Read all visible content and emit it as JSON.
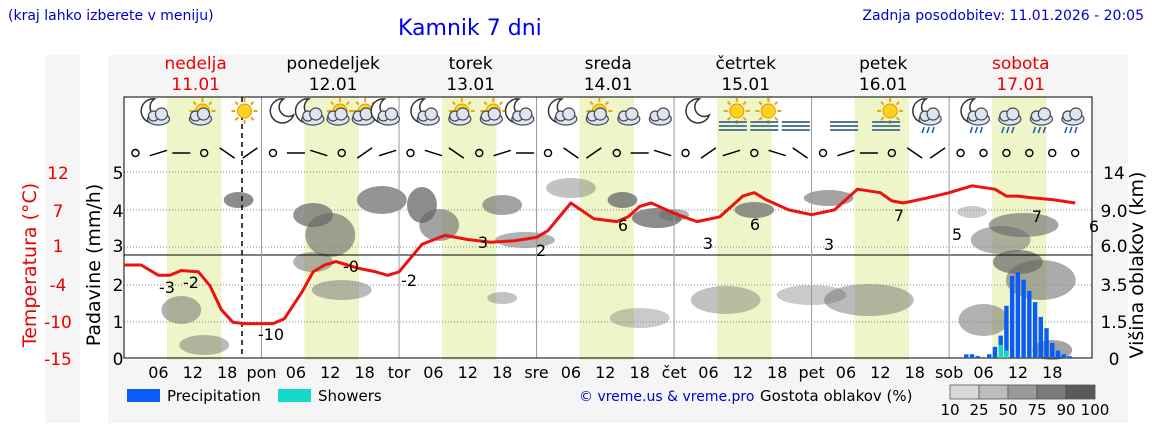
{
  "header": {
    "hint": "(kraj lahko izberete v meniju)",
    "title": "Kamnik 7 dni",
    "updated": "Zadnja posodobitev: 11.01.2026 - 20:05"
  },
  "days": [
    {
      "name": "nedelja",
      "date": "11.01",
      "weekend": true
    },
    {
      "name": "ponedeljek",
      "date": "12.01",
      "weekend": false
    },
    {
      "name": "torek",
      "date": "13.01",
      "weekend": false
    },
    {
      "name": "sreda",
      "date": "14.01",
      "weekend": false
    },
    {
      "name": "četrtek",
      "date": "15.01",
      "weekend": false
    },
    {
      "name": "petek",
      "date": "16.01",
      "weekend": false
    },
    {
      "name": "sobota",
      "date": "17.01",
      "weekend": true
    }
  ],
  "colors": {
    "temperature": "#ee1111",
    "precipitation": "#0a5cf5",
    "showers": "#15d8c8",
    "daylight": "#eef5c8",
    "copyright": "#0000cc",
    "weekend": "#ee0000"
  },
  "weather_icons": [
    [
      "moon-cloud",
      "sun-cloud",
      "sun"
    ],
    [
      "moon",
      "moon-cloud",
      "sun-cloud",
      "sun-cloud",
      "moon-cloud"
    ],
    [
      "moon-cloud",
      "sun-cloud",
      "sun-cloud",
      "moon-cloud"
    ],
    [
      "moon-cloud",
      "sun-cloud",
      "cloud",
      "cloud"
    ],
    [
      "moon",
      "sun-fog",
      "sun-fog",
      "fog"
    ],
    [
      "fog",
      "sun-fog",
      "moon-rain"
    ],
    [
      "moon-rain",
      "cloud-rain",
      "cloud-rain",
      "cloud-rain"
    ]
  ],
  "chart_data": {
    "type": "line",
    "xticks": [
      "06",
      "12",
      "18",
      "pon",
      "06",
      "12",
      "18",
      "tor",
      "06",
      "12",
      "18",
      "sre",
      "06",
      "12",
      "18",
      "čet",
      "06",
      "12",
      "18",
      "pet",
      "06",
      "12",
      "18",
      "sob",
      "06",
      "12",
      "18"
    ],
    "yleft_temperature": {
      "label": "Temperatura (°C)",
      "ticks": [
        "12",
        "7",
        "1",
        "-4",
        "-10",
        "-15"
      ],
      "ylim": [
        -15,
        12
      ]
    },
    "yleft_precip": {
      "label": "Padavine (mm/h)",
      "ticks": [
        "5",
        "4",
        "3",
        "2",
        "1",
        "0"
      ],
      "ylim": [
        0,
        5
      ]
    },
    "yright_cloud_height": {
      "label": "Višina oblakov (km)",
      "ticks": [
        "14",
        "9.0",
        "6.0",
        "3.5",
        "1.5",
        "0"
      ]
    },
    "series": [
      {
        "name": "Temperature",
        "x_hours": [
          0,
          3,
          6,
          8,
          10,
          13,
          15,
          17,
          19,
          21,
          24,
          26,
          28,
          31,
          33,
          35,
          37,
          39,
          41,
          44,
          46,
          48,
          52,
          56,
          60,
          64,
          68,
          72,
          74,
          78,
          82,
          86,
          88,
          90,
          92,
          96,
          100,
          104,
          108,
          110,
          112,
          116,
          120,
          124,
          128,
          132,
          134,
          136,
          140,
          144,
          148,
          152,
          154,
          156,
          158,
          162,
          166
        ],
        "values": [
          -1.5,
          -1.5,
          -3.0,
          -3.0,
          -2.3,
          -2.5,
          -4.5,
          -8.0,
          -9.8,
          -10.0,
          -10.0,
          -10.0,
          -9.3,
          -5.5,
          -2.5,
          -1.5,
          -1.0,
          -1.5,
          -2.0,
          -2.5,
          -3.0,
          -2.5,
          1.5,
          2.8,
          2.2,
          1.8,
          2.0,
          2.5,
          3.5,
          7.5,
          5.2,
          4.8,
          5.5,
          7.0,
          7.5,
          6.0,
          4.8,
          5.5,
          8.5,
          9.0,
          8.0,
          6.5,
          5.8,
          6.5,
          9.5,
          9.0,
          7.8,
          7.5,
          8.2,
          9.0,
          10.0,
          9.5,
          8.5,
          8.5,
          8.3,
          8.0,
          7.5
        ]
      },
      {
        "name": "Precipitation",
        "x_hours": [
          147,
          148,
          149,
          151,
          152,
          153,
          154,
          155,
          156,
          157,
          158,
          159,
          160,
          161,
          162,
          163,
          164,
          165
        ],
        "values": [
          0.1,
          0.1,
          0.05,
          0.1,
          0.3,
          0.6,
          1.4,
          2.2,
          2.3,
          2.1,
          1.8,
          1.5,
          1.1,
          0.8,
          0.4,
          0.2,
          0.1,
          0.05
        ]
      },
      {
        "name": "Showers",
        "x_hours": [
          153,
          154
        ],
        "values": [
          0.35,
          0.2
        ]
      }
    ],
    "temp_labels": [
      "-3",
      "-2",
      "-10",
      "-0",
      "-2",
      "3",
      "2",
      "6",
      "3",
      "6",
      "3",
      "7",
      "5",
      "7",
      "6"
    ],
    "legend": {
      "precipitation": "Precipitation",
      "showers": "Showers",
      "copyright": "© vreme.us & vreme.pro",
      "cloud_density": "Gostota oblakov (%)",
      "density_ticks": [
        "10",
        "25",
        "50",
        "75",
        "90",
        "100"
      ]
    }
  }
}
